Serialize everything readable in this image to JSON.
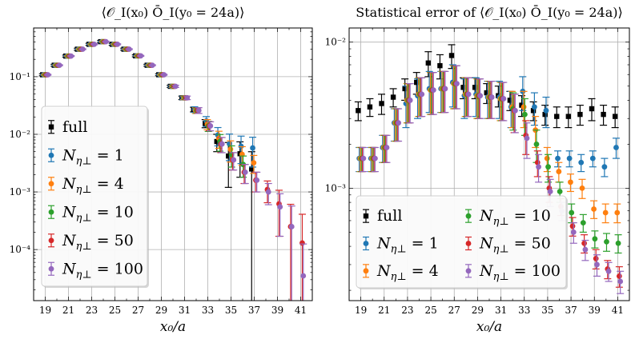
{
  "colors": {
    "full": "#000000",
    "n1": "#1f77b4",
    "n4": "#ff7f0e",
    "n10": "#2ca02c",
    "n50": "#d62728",
    "n100": "#9467bd",
    "grid": "#b0b0b0"
  },
  "chart_data": [
    {
      "type": "scatter",
      "title": "⟨𝒪_I(x₀) Ō_I(y₀ = 24a)⟩",
      "xlabel": "x₀/a",
      "ylabel": "",
      "yscale": "log",
      "xlim": [
        18,
        42
      ],
      "ylim": [
        1.3e-05,
        0.7
      ],
      "xticks": [
        19,
        21,
        23,
        25,
        27,
        29,
        31,
        33,
        35,
        37,
        39,
        41
      ],
      "xtick_labels": [
        "19",
        "21",
        "23",
        "25",
        "27",
        "29",
        "31",
        "33",
        "35",
        "37",
        "39",
        "41"
      ],
      "yticks": [
        0.1,
        0.01,
        0.001,
        0.0001
      ],
      "ytick_labels": [
        "10⁻¹",
        "10⁻²",
        "10⁻³",
        "10⁻⁴"
      ],
      "legend": [
        "full",
        "N_η⊥ = 1",
        "N_η⊥ = 4",
        "N_η⊥ = 10",
        "N_η⊥ = 50",
        "N_η⊥ = 100"
      ],
      "legend_position": "lower-left",
      "series": [
        {
          "name": "full",
          "key": "full",
          "marker": "square",
          "x": [
            19,
            20,
            21,
            22,
            23,
            24,
            25,
            26,
            27,
            28,
            29,
            30,
            31,
            32,
            33,
            34,
            35,
            36,
            37
          ],
          "y": [
            0.108,
            0.158,
            0.228,
            0.3,
            0.365,
            0.405,
            0.365,
            0.3,
            0.23,
            0.158,
            0.108,
            0.068,
            0.043,
            0.027,
            0.0155,
            0.0075,
            0.0042,
            0.0046,
            0.0025
          ],
          "err": [
            0.004,
            0.006,
            0.009,
            0.012,
            0.015,
            0.017,
            0.015,
            0.012,
            0.009,
            0.006,
            0.004,
            0.003,
            0.003,
            0.0025,
            0.0025,
            0.0025,
            0.003,
            0.0028,
            0.00249
          ]
        },
        {
          "name": "N_η⊥ = 1",
          "key": "n1",
          "marker": "circle",
          "x": [
            19,
            20,
            21,
            22,
            23,
            24,
            25,
            26,
            27,
            28,
            29,
            30,
            31,
            32,
            33,
            34,
            35,
            36,
            37
          ],
          "y": [
            0.108,
            0.158,
            0.228,
            0.3,
            0.365,
            0.405,
            0.365,
            0.3,
            0.23,
            0.158,
            0.108,
            0.068,
            0.043,
            0.027,
            0.017,
            0.0097,
            0.0068,
            0.0062,
            0.0058
          ],
          "err": [
            0.002,
            0.003,
            0.004,
            0.005,
            0.007,
            0.008,
            0.007,
            0.005,
            0.004,
            0.003,
            0.002,
            0.003,
            0.003,
            0.003,
            0.0033,
            0.0034,
            0.0033,
            0.0031,
            0.0031
          ]
        },
        {
          "name": "N_η⊥ = 4",
          "key": "n4",
          "marker": "circle",
          "x": [
            19,
            20,
            21,
            22,
            23,
            24,
            25,
            26,
            27,
            28,
            29,
            30,
            31,
            32,
            33,
            34,
            35,
            36,
            37
          ],
          "y": [
            0.108,
            0.158,
            0.228,
            0.3,
            0.365,
            0.405,
            0.365,
            0.3,
            0.23,
            0.158,
            0.108,
            0.068,
            0.043,
            0.026,
            0.015,
            0.0085,
            0.0055,
            0.0045,
            0.0032
          ],
          "err": [
            0.002,
            0.003,
            0.004,
            0.005,
            0.007,
            0.008,
            0.007,
            0.005,
            0.004,
            0.003,
            0.002,
            0.003,
            0.003,
            0.003,
            0.003,
            0.0028,
            0.0022,
            0.0016,
            0.0011
          ]
        },
        {
          "name": "N_η⊥ = 10",
          "key": "n10",
          "marker": "circle",
          "x": [
            19,
            20,
            21,
            22,
            23,
            24,
            25,
            26,
            27,
            28,
            29,
            30,
            31,
            32,
            33,
            34,
            35,
            36
          ],
          "y": [
            0.108,
            0.158,
            0.228,
            0.3,
            0.365,
            0.405,
            0.365,
            0.3,
            0.23,
            0.158,
            0.108,
            0.068,
            0.043,
            0.026,
            0.014,
            0.0075,
            0.0045,
            0.003
          ],
          "err": [
            0.002,
            0.003,
            0.004,
            0.005,
            0.007,
            0.008,
            0.007,
            0.005,
            0.004,
            0.003,
            0.002,
            0.003,
            0.003,
            0.003,
            0.0028,
            0.0024,
            0.0018,
            0.0012
          ]
        },
        {
          "name": "N_η⊥ = 50",
          "key": "n50",
          "marker": "circle",
          "x": [
            19,
            20,
            21,
            22,
            23,
            24,
            25,
            26,
            27,
            28,
            29,
            30,
            31,
            32,
            33,
            34,
            35,
            36,
            37,
            38,
            39,
            40,
            41
          ],
          "y": [
            0.108,
            0.158,
            0.228,
            0.3,
            0.365,
            0.405,
            0.365,
            0.3,
            0.23,
            0.158,
            0.108,
            0.068,
            0.043,
            0.026,
            0.014,
            0.0068,
            0.0036,
            0.0022,
            0.0016,
            0.0011,
            0.00062,
            0.00025,
            0.00013
          ],
          "err": [
            0.002,
            0.003,
            0.004,
            0.005,
            0.007,
            0.008,
            0.007,
            0.005,
            0.004,
            0.003,
            0.002,
            0.003,
            0.003,
            0.003,
            0.0025,
            0.002,
            0.0012,
            0.0008,
            0.0006,
            0.00045,
            0.00045,
            0.00036,
            0.00028
          ]
        },
        {
          "name": "N_η⊥ = 100",
          "key": "n100",
          "marker": "circle",
          "x": [
            19,
            20,
            21,
            22,
            23,
            24,
            25,
            26,
            27,
            28,
            29,
            30,
            31,
            32,
            33,
            34,
            35,
            36,
            37,
            38,
            39,
            40,
            41
          ],
          "y": [
            0.108,
            0.158,
            0.228,
            0.3,
            0.365,
            0.405,
            0.365,
            0.3,
            0.23,
            0.158,
            0.108,
            0.068,
            0.043,
            0.026,
            0.014,
            0.0068,
            0.0036,
            0.0022,
            0.0016,
            0.001,
            0.00055,
            0.00025,
            3.5e-05
          ],
          "err": [
            0.002,
            0.003,
            0.004,
            0.005,
            0.007,
            0.008,
            0.007,
            0.005,
            0.004,
            0.003,
            0.002,
            0.003,
            0.003,
            0.003,
            0.0025,
            0.002,
            0.0012,
            0.0008,
            0.0006,
            0.0004,
            0.00038,
            0.00032,
            9e-05
          ]
        }
      ]
    },
    {
      "type": "scatter",
      "title": "Statistical error of ⟨𝒪_I(x₀) Ō_I(y₀ = 24a)⟩",
      "xlabel": "x₀/a",
      "ylabel": "",
      "yscale": "log",
      "xlim": [
        18,
        42
      ],
      "ylim": [
        0.00017,
        0.0125
      ],
      "xticks": [
        19,
        21,
        23,
        25,
        27,
        29,
        31,
        33,
        35,
        37,
        39,
        41
      ],
      "xtick_labels": [
        "19",
        "21",
        "23",
        "25",
        "27",
        "29",
        "31",
        "33",
        "35",
        "37",
        "39",
        "41"
      ],
      "yticks": [
        0.01,
        0.001
      ],
      "ytick_labels": [
        "10⁻²",
        "10⁻³"
      ],
      "legend": [
        "full",
        "N_η⊥ = 1",
        "N_η⊥ = 4",
        "N_η⊥ = 10",
        "N_η⊥ = 50",
        "N_η⊥ = 100"
      ],
      "legend_position": "lower-left",
      "series": [
        {
          "name": "full",
          "key": "full",
          "marker": "square",
          "x": [
            19,
            20,
            21,
            22,
            23,
            24,
            25,
            26,
            27,
            28,
            29,
            30,
            31,
            32,
            33,
            34,
            35,
            36,
            37,
            38,
            39,
            40,
            41
          ],
          "y": [
            0.0034,
            0.0036,
            0.0038,
            0.0042,
            0.0048,
            0.0053,
            0.0072,
            0.0069,
            0.0081,
            0.0049,
            0.0049,
            0.0045,
            0.0043,
            0.004,
            0.0037,
            0.0034,
            0.0032,
            0.0031,
            0.0031,
            0.0032,
            0.0035,
            0.0032,
            0.0031
          ],
          "err": [
            0.0005,
            0.0005,
            0.0006,
            0.0006,
            0.0008,
            0.0009,
            0.0014,
            0.0013,
            0.0015,
            0.0008,
            0.0008,
            0.0007,
            0.0007,
            0.0006,
            0.0006,
            0.0005,
            0.0005,
            0.0005,
            0.0005,
            0.0005,
            0.0006,
            0.0005,
            0.0005
          ]
        },
        {
          "name": "N_η⊥ = 1",
          "key": "n1",
          "marker": "circle",
          "x": [
            19,
            20,
            21,
            22,
            23,
            24,
            25,
            26,
            27,
            28,
            29,
            30,
            31,
            32,
            33,
            34,
            35,
            36,
            37,
            38,
            39,
            40,
            41
          ],
          "y": [
            0.0016,
            0.0016,
            0.0019,
            0.0028,
            0.0038,
            0.0043,
            0.0048,
            0.0048,
            0.0053,
            0.0043,
            0.0044,
            0.0042,
            0.0042,
            0.0036,
            0.0046,
            0.0036,
            0.0034,
            0.0016,
            0.0016,
            0.0015,
            0.0016,
            0.0014,
            0.0019
          ],
          "err": [
            0.0003,
            0.0003,
            0.0004,
            0.0007,
            0.0012,
            0.0013,
            0.0015,
            0.0015,
            0.0017,
            0.0013,
            0.0013,
            0.0012,
            0.0012,
            0.001,
            0.0012,
            0.0009,
            0.0008,
            0.0002,
            0.0002,
            0.0002,
            0.0002,
            0.0002,
            0.0003
          ]
        },
        {
          "name": "N_η⊥ = 4",
          "key": "n4",
          "marker": "circle",
          "x": [
            19,
            20,
            21,
            22,
            23,
            24,
            25,
            26,
            27,
            28,
            29,
            30,
            31,
            32,
            33,
            34,
            35,
            36,
            37,
            38,
            39,
            40,
            41
          ],
          "y": [
            0.0016,
            0.0016,
            0.0019,
            0.0028,
            0.004,
            0.0044,
            0.0047,
            0.0048,
            0.0052,
            0.0044,
            0.0043,
            0.0042,
            0.0041,
            0.0036,
            0.0036,
            0.0025,
            0.0016,
            0.0013,
            0.0011,
            0.001,
            0.00072,
            0.00068,
            0.00068
          ],
          "err": [
            0.0003,
            0.0003,
            0.0004,
            0.0007,
            0.0012,
            0.0013,
            0.0015,
            0.0015,
            0.0017,
            0.0013,
            0.0013,
            0.0012,
            0.0012,
            0.001,
            0.001,
            0.0006,
            0.0003,
            0.0002,
            0.00015,
            0.00015,
            0.0001,
            0.0001,
            0.0001
          ]
        },
        {
          "name": "N_η⊥ = 10",
          "key": "n10",
          "marker": "circle",
          "x": [
            19,
            20,
            21,
            22,
            23,
            24,
            25,
            26,
            27,
            28,
            29,
            30,
            31,
            32,
            33,
            34,
            35,
            36,
            37,
            38,
            39,
            40,
            41
          ],
          "y": [
            0.0016,
            0.0016,
            0.0019,
            0.0028,
            0.004,
            0.0044,
            0.0047,
            0.0048,
            0.0052,
            0.0044,
            0.0043,
            0.0042,
            0.0041,
            0.0035,
            0.0032,
            0.002,
            0.0014,
            0.00095,
            0.00068,
            0.00058,
            0.00045,
            0.00043,
            0.00042
          ],
          "err": [
            0.0003,
            0.0003,
            0.0004,
            0.0007,
            0.0012,
            0.0013,
            0.0015,
            0.0015,
            0.0017,
            0.0013,
            0.0013,
            0.0012,
            0.0012,
            0.001,
            0.0009,
            0.0005,
            0.0003,
            0.00015,
            0.0001,
            8e-05,
            6e-05,
            6e-05,
            6e-05
          ]
        },
        {
          "name": "N_η⊥ = 50",
          "key": "n50",
          "marker": "circle",
          "x": [
            19,
            20,
            21,
            22,
            23,
            24,
            25,
            26,
            27,
            28,
            29,
            30,
            31,
            32,
            33,
            34,
            35,
            36,
            37,
            38,
            39,
            40,
            41
          ],
          "y": [
            0.0016,
            0.0016,
            0.0019,
            0.0028,
            0.004,
            0.0044,
            0.0047,
            0.0048,
            0.0052,
            0.0044,
            0.0043,
            0.0042,
            0.0041,
            0.0034,
            0.0023,
            0.0015,
            0.001,
            0.00075,
            0.00055,
            0.00042,
            0.00033,
            0.00028,
            0.00025
          ],
          "err": [
            0.0003,
            0.0003,
            0.0004,
            0.0007,
            0.0012,
            0.0013,
            0.0015,
            0.0015,
            0.0017,
            0.0013,
            0.0013,
            0.0012,
            0.0012,
            0.001,
            0.0006,
            0.0003,
            0.0002,
            0.0001,
            8e-05,
            6e-05,
            5e-05,
            4e-05,
            4e-05
          ]
        },
        {
          "name": "N_η⊥ = 100",
          "key": "n100",
          "marker": "circle",
          "x": [
            19,
            20,
            21,
            22,
            23,
            24,
            25,
            26,
            27,
            28,
            29,
            30,
            31,
            32,
            33,
            34,
            35,
            36,
            37,
            38,
            39,
            40,
            41
          ],
          "y": [
            0.0016,
            0.0016,
            0.0019,
            0.0028,
            0.004,
            0.0044,
            0.0047,
            0.0048,
            0.0052,
            0.0044,
            0.0043,
            0.0042,
            0.0041,
            0.0034,
            0.0022,
            0.0014,
            0.00095,
            0.0007,
            0.0005,
            0.00038,
            0.0003,
            0.00027,
            0.00023
          ],
          "err": [
            0.0003,
            0.0003,
            0.0004,
            0.0007,
            0.0012,
            0.0013,
            0.0015,
            0.0015,
            0.0017,
            0.0013,
            0.0013,
            0.0012,
            0.0012,
            0.001,
            0.0006,
            0.0003,
            0.0002,
            0.0001,
            8e-05,
            6e-05,
            5e-05,
            4e-05,
            4e-05
          ]
        }
      ]
    }
  ]
}
